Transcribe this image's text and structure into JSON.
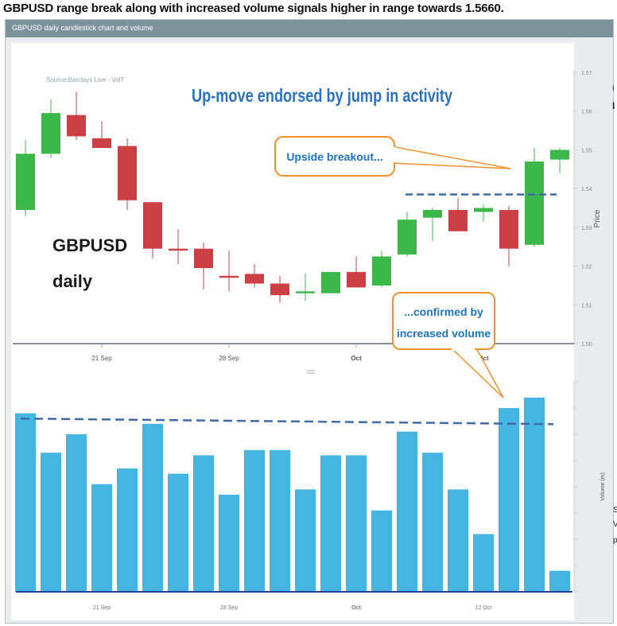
{
  "headline": "GBPUSD range break along with increased volume signals higher in range towards 1.5660.",
  "panel_title": "GBPUSD daily candlestick chart and volume",
  "colors": {
    "up": "#3cb84a",
    "down": "#cc3f45",
    "volume": "#45b6e2",
    "dashed_line": "#3f6aa6",
    "annotation_border": "#f0912c",
    "annotation_text": "#1e73c0",
    "title_text": "#2a72c0"
  },
  "chart_data": [
    {
      "type": "candlestick",
      "title": "Up-move endorsed by jump in activity",
      "source": "Source:Barclays Live - VolT",
      "label_lines": [
        "GBPUSD",
        "daily"
      ],
      "ylabel": "Price",
      "ylim": [
        1.5,
        1.57
      ],
      "yticks": [
        "1.50",
        "1.51",
        "1.52",
        "1.53",
        "1.54",
        "1.55",
        "1.56",
        "1.57"
      ],
      "xticks": [
        {
          "label": "21 Sep",
          "index": 3
        },
        {
          "label": "28 Sep",
          "index": 8
        },
        {
          "label": "Oct",
          "index": 13
        },
        {
          "label": "Oct",
          "index": 18
        }
      ],
      "candles": [
        {
          "open": 1.5345,
          "high": 1.5525,
          "low": 1.533,
          "close": 1.549
        },
        {
          "open": 1.549,
          "high": 1.563,
          "low": 1.548,
          "close": 1.5595
        },
        {
          "open": 1.559,
          "high": 1.565,
          "low": 1.5525,
          "close": 1.5535
        },
        {
          "open": 1.553,
          "high": 1.5575,
          "low": 1.5505,
          "close": 1.5505
        },
        {
          "open": 1.551,
          "high": 1.553,
          "low": 1.5345,
          "close": 1.537
        },
        {
          "open": 1.5365,
          "high": 1.5365,
          "low": 1.522,
          "close": 1.5245
        },
        {
          "open": 1.5245,
          "high": 1.5295,
          "low": 1.5205,
          "close": 1.524
        },
        {
          "open": 1.5245,
          "high": 1.526,
          "low": 1.514,
          "close": 1.5195
        },
        {
          "open": 1.5175,
          "high": 1.524,
          "low": 1.5135,
          "close": 1.517
        },
        {
          "open": 1.518,
          "high": 1.5205,
          "low": 1.5145,
          "close": 1.5155
        },
        {
          "open": 1.5155,
          "high": 1.5175,
          "low": 1.5105,
          "close": 1.5125
        },
        {
          "open": 1.513,
          "high": 1.518,
          "low": 1.511,
          "close": 1.5135
        },
        {
          "open": 1.513,
          "high": 1.5185,
          "low": 1.513,
          "close": 1.5185
        },
        {
          "open": 1.5185,
          "high": 1.5225,
          "low": 1.5145,
          "close": 1.5145
        },
        {
          "open": 1.515,
          "high": 1.524,
          "low": 1.5145,
          "close": 1.5225
        },
        {
          "open": 1.523,
          "high": 1.534,
          "low": 1.5225,
          "close": 1.532
        },
        {
          "open": 1.5325,
          "high": 1.535,
          "low": 1.5265,
          "close": 1.5345
        },
        {
          "open": 1.5345,
          "high": 1.5375,
          "low": 1.529,
          "close": 1.529
        },
        {
          "open": 1.534,
          "high": 1.536,
          "low": 1.5315,
          "close": 1.535
        },
        {
          "open": 1.5345,
          "high": 1.5355,
          "low": 1.52,
          "close": 1.5245
        },
        {
          "open": 1.5255,
          "high": 1.5505,
          "low": 1.525,
          "close": 1.547
        },
        {
          "open": 1.5475,
          "high": 1.5505,
          "low": 1.544,
          "close": 1.55
        }
      ],
      "resistance_level": 1.5385,
      "annotations": [
        {
          "text": "Upside breakout...",
          "lines": [
            "Upside breakout..."
          ]
        },
        {
          "text": "...confirmed by increased volume",
          "lines": [
            "...confirmed by",
            "increased volume"
          ]
        }
      ]
    },
    {
      "type": "bar",
      "ylabel": "Volume (m)",
      "xticks": [
        {
          "label": "21 Sep",
          "index": 3
        },
        {
          "label": "28 Sep",
          "index": 8
        },
        {
          "label": "Oct",
          "index": 13
        },
        {
          "label": "12 Oct",
          "index": 18
        }
      ],
      "values": [
        68,
        53,
        60,
        41,
        47,
        64,
        45,
        52,
        37,
        54,
        54,
        39,
        52,
        52,
        31,
        61,
        53,
        39,
        22,
        70,
        74,
        8
      ],
      "average_level": 66
    }
  ]
}
